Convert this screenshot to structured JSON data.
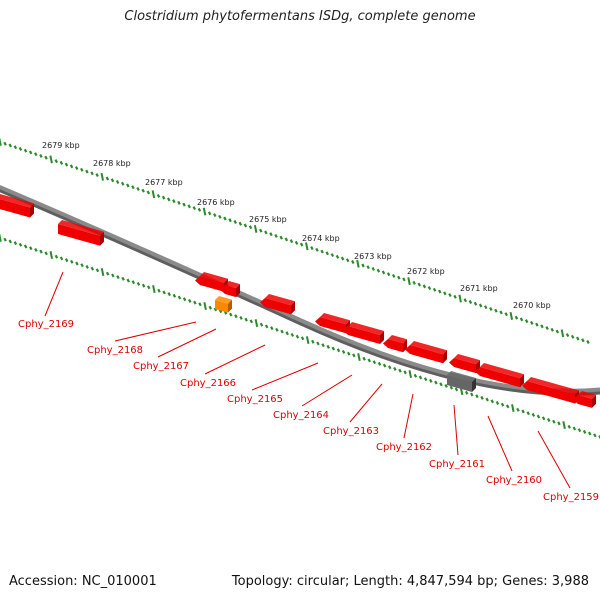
{
  "title": "Clostridium phytofermentans ISDg, complete genome",
  "footer": {
    "accession": "Accession: NC_010001",
    "summary": "Topology: circular; Length: 4,847,594 bp; Genes: 3,988"
  },
  "colors": {
    "backbone": "#8a8a8a",
    "tick": "#2b8a2b",
    "gene": "#ee0000",
    "gene_highlight": "#ff8800",
    "gene_other": "#666666",
    "label": "#dd0000"
  },
  "scale_labels": [
    "2679 kbp",
    "2678 kbp",
    "2677 kbp",
    "2676 kbp",
    "2675 kbp",
    "2674 kbp",
    "2673 kbp",
    "2672 kbp",
    "2671 kbp",
    "2670 kbp"
  ],
  "genes": [
    {
      "name": "Cphy_2169",
      "strand": "+"
    },
    {
      "name": "Cphy_2168",
      "strand": "-"
    },
    {
      "name": "Cphy_2167",
      "strand": "-"
    },
    {
      "name": "Cphy_2166",
      "strand": "-"
    },
    {
      "name": "Cphy_2165",
      "strand": "-"
    },
    {
      "name": "Cphy_2164",
      "strand": "-"
    },
    {
      "name": "Cphy_2163",
      "strand": "-"
    },
    {
      "name": "Cphy_2162",
      "strand": "-"
    },
    {
      "name": "Cphy_2161",
      "strand": "-"
    },
    {
      "name": "Cphy_2160",
      "strand": "-"
    },
    {
      "name": "Cphy_2159",
      "strand": "-"
    }
  ]
}
